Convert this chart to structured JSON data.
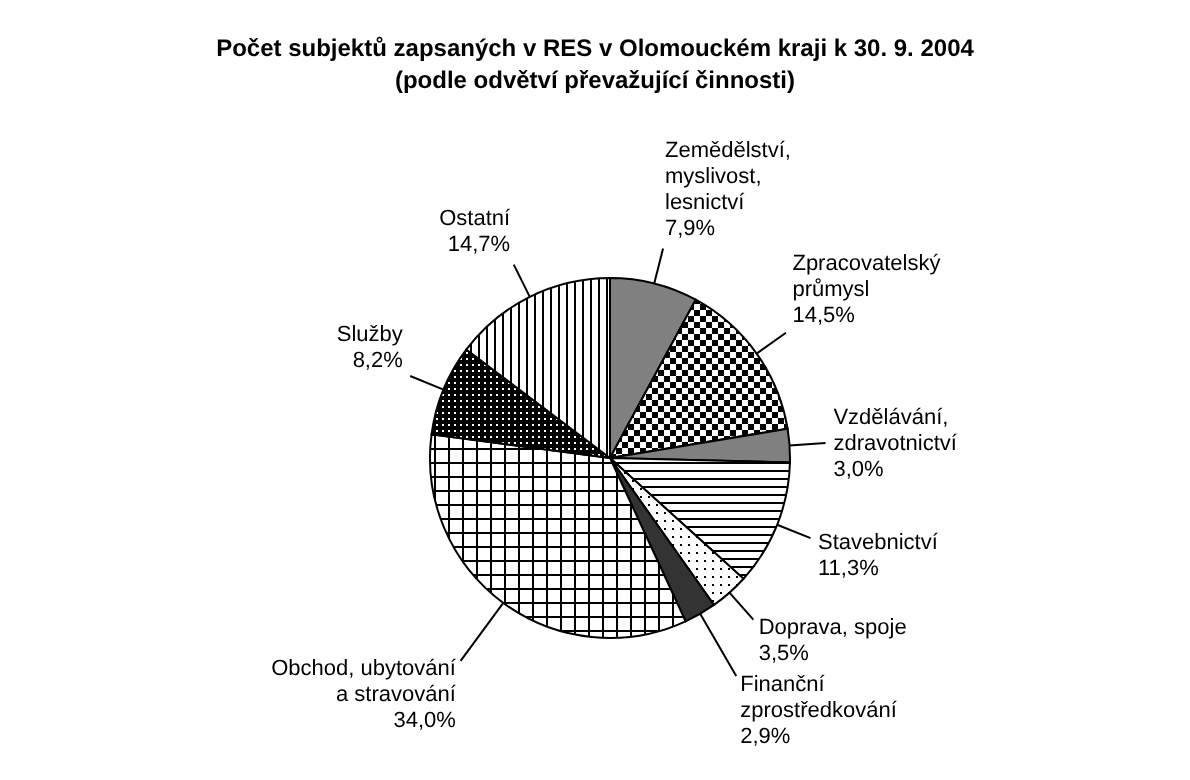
{
  "chart_data": {
    "type": "pie",
    "title": "Počet subjektů zapsaných v RES v Olomouckém kraji k 30. 9. 2004",
    "subtitle": "(podle odvětví převažující činnosti)",
    "categories": [
      "Zemědělství, myslivost, lesnictví",
      "Zpracovatelský průmysl",
      "Vzdělávání, zdravotnictví",
      "Stavebnictví",
      "Doprava, spoje",
      "Finanční zprostředkování",
      "Obchod, ubytování a stravování",
      "Služby",
      "Ostatní"
    ],
    "values": [
      7.9,
      14.5,
      3.0,
      11.3,
      3.5,
      2.9,
      34.0,
      8.2,
      14.7
    ],
    "value_labels": [
      "7,9%",
      "14,5%",
      "3,0%",
      "11,3%",
      "3,5%",
      "2,9%",
      "34,0%",
      "8,2%",
      "14,7%"
    ],
    "colors": [
      "#808080",
      "#000000",
      "#808080",
      "#000000",
      "#000000",
      "#333333",
      "#000000",
      "#000000",
      "#000000"
    ]
  }
}
